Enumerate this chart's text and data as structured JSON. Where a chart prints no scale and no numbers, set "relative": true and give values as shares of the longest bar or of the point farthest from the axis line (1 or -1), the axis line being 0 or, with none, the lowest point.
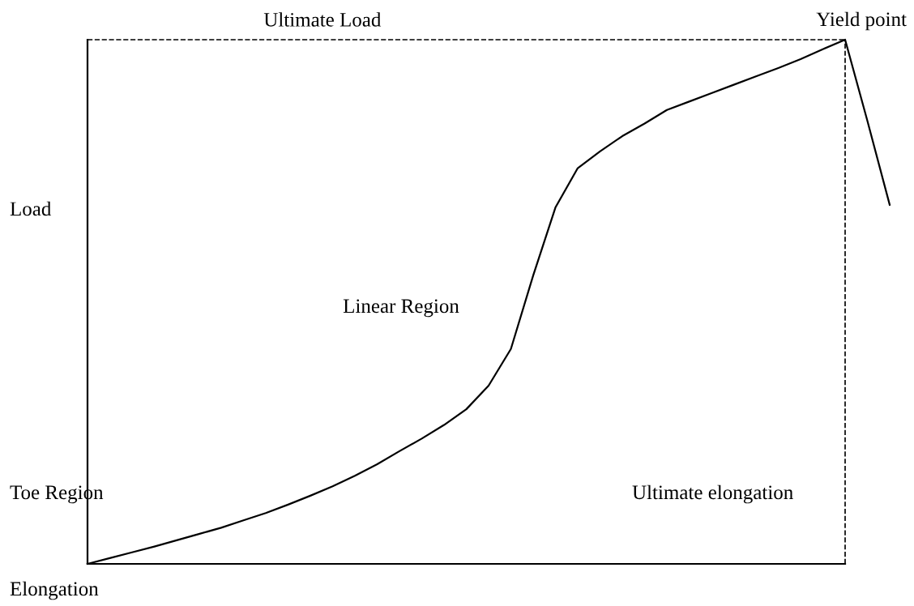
{
  "chart_data": {
    "type": "line",
    "relative": true,
    "xlabel": "Elongation",
    "ylabel": "Load",
    "categories": [
      null,
      null,
      null,
      null,
      null,
      null,
      null,
      null,
      null,
      null,
      null,
      null,
      null,
      null,
      null,
      null,
      null,
      null,
      null,
      null,
      null,
      null,
      null,
      null,
      null,
      null,
      null,
      null,
      null,
      null,
      null,
      null,
      null,
      null,
      null,
      null,
      null
    ],
    "series": [
      {
        "color": "#000000",
        "values": [
          0,
          0.011,
          0.022,
          0.033,
          0.045,
          0.057,
          0.069,
          0.083,
          0.097,
          0.113,
          0.13,
          0.148,
          0.168,
          0.19,
          0.215,
          0.239,
          0.265,
          0.295,
          0.34,
          0.41,
          0.55,
          0.68,
          0.755,
          0.787,
          0.816,
          0.84,
          0.866,
          0.882,
          0.898,
          0.914,
          0.93,
          0.946,
          0.963,
          0.982,
          1,
          0.845,
          0.685
        ]
      }
    ],
    "ref_lines": [
      {
        "axis": "y",
        "value": 1,
        "label": "Ultimate Load",
        "color": "#000000",
        "line_style": "dashed"
      }
    ],
    "annotations": [
      "Yield point",
      "Linear Region",
      "Toe Region",
      "Ultimate elongation"
    ]
  }
}
